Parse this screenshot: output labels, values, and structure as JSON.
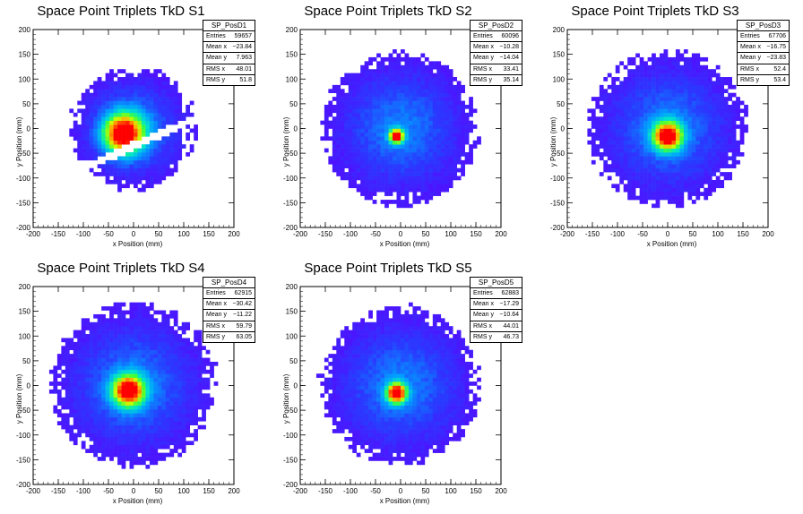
{
  "chart_data": [
    {
      "type": "heatmap",
      "title": "Space Point Triplets TkD S1",
      "xlabel": "x Position (mm)",
      "ylabel": "y Position (mm)",
      "xlim": [
        -200,
        200
      ],
      "ylim": [
        -200,
        200
      ],
      "xticks": [
        "-200",
        "-150",
        "-100",
        "-50",
        "0",
        "50",
        "100",
        "150",
        "200"
      ],
      "yticks": [
        "-200",
        "-150",
        "-100",
        "-50",
        "0",
        "50",
        "100",
        "150",
        "200"
      ],
      "stats": {
        "name": "SP_PosD1",
        "rows": [
          {
            "label": "Entries",
            "value": "59657"
          },
          {
            "label": "Mean x",
            "value": "−23.84"
          },
          {
            "label": "Mean y",
            "value": "7.963"
          },
          {
            "label": "RMS x",
            "value": "48.01"
          },
          {
            "label": "RMS y",
            "value": "51.8"
          }
        ]
      },
      "peak": [
        -20,
        -10
      ],
      "core_sigma": 28,
      "halo_radius": 125,
      "gap": true
    },
    {
      "type": "heatmap",
      "title": "Space Point Triplets TkD S2",
      "xlabel": "x Position (mm)",
      "ylabel": "y Position (mm)",
      "xlim": [
        -200,
        200
      ],
      "ylim": [
        -200,
        200
      ],
      "xticks": [
        "-200",
        "-150",
        "-100",
        "-50",
        "0",
        "50",
        "100",
        "150",
        "200"
      ],
      "yticks": [
        "-200",
        "-150",
        "-100",
        "-50",
        "0",
        "50",
        "100",
        "150",
        "200"
      ],
      "stats": {
        "name": "SP_PosD2",
        "rows": [
          {
            "label": "Entries",
            "value": "60096"
          },
          {
            "label": "Mean x",
            "value": "−10.28"
          },
          {
            "label": "Mean y",
            "value": "−14.04"
          },
          {
            "label": "RMS x",
            "value": "33.41"
          },
          {
            "label": "RMS y",
            "value": "35.14"
          }
        ]
      },
      "peak": [
        -8,
        -15
      ],
      "core_sigma": 10,
      "halo_radius": 155,
      "gap": false
    },
    {
      "type": "heatmap",
      "title": "Space Point Triplets TkD S3",
      "xlabel": "x Position (mm)",
      "ylabel": "y Position (mm)",
      "xlim": [
        -200,
        200
      ],
      "ylim": [
        -200,
        200
      ],
      "xticks": [
        "-200",
        "-150",
        "-100",
        "-50",
        "0",
        "50",
        "100",
        "150",
        "200"
      ],
      "yticks": [
        "-200",
        "-150",
        "-100",
        "-50",
        "0",
        "50",
        "100",
        "150",
        "200"
      ],
      "stats": {
        "name": "SP_PosD3",
        "rows": [
          {
            "label": "Entries",
            "value": "67706"
          },
          {
            "label": "Mean x",
            "value": "−16.75"
          },
          {
            "label": "Mean y",
            "value": "−23.83"
          },
          {
            "label": "RMS x",
            "value": "52.4"
          },
          {
            "label": "RMS y",
            "value": "53.4"
          }
        ]
      },
      "peak": [
        0,
        -15
      ],
      "core_sigma": 20,
      "halo_radius": 158,
      "gap": false
    },
    {
      "type": "heatmap",
      "title": "Space Point Triplets TkD S4",
      "xlabel": "x Position (mm)",
      "ylabel": "y Position (mm)",
      "xlim": [
        -200,
        200
      ],
      "ylim": [
        -200,
        200
      ],
      "xticks": [
        "-200",
        "-150",
        "-100",
        "-50",
        "0",
        "50",
        "100",
        "150",
        "200"
      ],
      "yticks": [
        "-200",
        "-150",
        "-100",
        "-50",
        "0",
        "50",
        "100",
        "150",
        "200"
      ],
      "stats": {
        "name": "SP_PosD4",
        "rows": [
          {
            "label": "Entries",
            "value": "62915"
          },
          {
            "label": "Mean x",
            "value": "−30.42"
          },
          {
            "label": "Mean y",
            "value": "−11.22"
          },
          {
            "label": "RMS x",
            "value": "59.79"
          },
          {
            "label": "RMS y",
            "value": "63.05"
          }
        ]
      },
      "peak": [
        -10,
        -10
      ],
      "core_sigma": 22,
      "halo_radius": 165,
      "gap": false
    },
    {
      "type": "heatmap",
      "title": "Space Point Triplets TkD S5",
      "xlabel": "x Position (mm)",
      "ylabel": "y Position (mm)",
      "xlim": [
        -200,
        200
      ],
      "ylim": [
        -200,
        200
      ],
      "xticks": [
        "-200",
        "-150",
        "-100",
        "-50",
        "0",
        "50",
        "100",
        "150",
        "200"
      ],
      "yticks": [
        "-200",
        "-150",
        "-100",
        "-50",
        "0",
        "50",
        "100",
        "150",
        "200"
      ],
      "stats": {
        "name": "SP_PosD5",
        "rows": [
          {
            "label": "Entries",
            "value": "62883"
          },
          {
            "label": "Mean x",
            "value": "−17.29"
          },
          {
            "label": "Mean y",
            "value": "−10.64"
          },
          {
            "label": "RMS x",
            "value": "44.01"
          },
          {
            "label": "RMS y",
            "value": "46.73"
          }
        ]
      },
      "peak": [
        -8,
        -15
      ],
      "core_sigma": 14,
      "halo_radius": 160,
      "gap": false
    }
  ]
}
